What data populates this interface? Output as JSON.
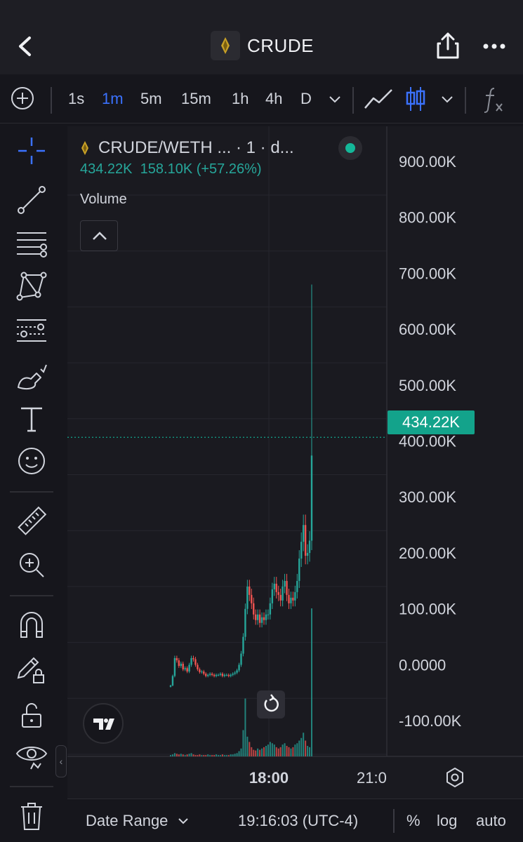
{
  "header": {
    "title": "CRUDE",
    "back_icon": "chevron-left-icon",
    "share_icon": "share-icon",
    "more_icon": "more-dots-icon"
  },
  "toolbar": {
    "add_icon": "plus-circle-icon",
    "intervals": [
      "1s",
      "1m",
      "5m",
      "15m",
      "1h",
      "4h",
      "D"
    ],
    "active_interval": "1m",
    "chart_type_icon": "line-chart-icon",
    "candle_icon": "candlestick-icon",
    "indicators_icon": "fx-icon"
  },
  "sidebar": {
    "tools": [
      "crosshair-icon",
      "trend-line-icon",
      "fib-retracement-icon",
      "pattern-icon",
      "prediction-icon",
      "brush-icon",
      "text-icon",
      "emoji-icon",
      "ruler-icon",
      "zoom-in-icon",
      "magnet-icon",
      "lock-drawing-icon",
      "unlock-icon",
      "eye-icon",
      "trash-icon"
    ]
  },
  "legend": {
    "pair": "CRUDE/WETH ... · 1 · d...",
    "price": "434.22K",
    "change": "158.10K (+57.26%)",
    "volume_label": "Volume"
  },
  "price_label": "434.22K",
  "colors": {
    "up": "#26a69a",
    "down": "#ef5350",
    "accent": "#3b72ff",
    "price_line": "#13a38b",
    "background": "#1a1a20"
  },
  "chart_data": {
    "type": "candlestick",
    "interval": "1m",
    "ylim": [
      -140000,
      950000
    ],
    "y_ticks": [
      "900.00K",
      "800.00K",
      "700.00K",
      "600.00K",
      "500.00K",
      "400.00K",
      "300.00K",
      "200.00K",
      "100.00K",
      "0.0000",
      "-100.00K"
    ],
    "y_tick_values": [
      900000,
      800000,
      700000,
      600000,
      500000,
      400000,
      300000,
      200000,
      100000,
      0,
      -100000
    ],
    "x_ticks": [
      "18:00",
      "21:0"
    ],
    "current_price": 434220,
    "change_abs": 158100,
    "change_pct": 57.26,
    "close_series": [
      23000,
      40000,
      72000,
      68000,
      58000,
      62000,
      52000,
      54000,
      48000,
      60000,
      72000,
      70000,
      60000,
      52000,
      47000,
      48000,
      44000,
      40000,
      42000,
      44000,
      42000,
      40000,
      42000,
      42000,
      44000,
      40000,
      42000,
      42000,
      40000,
      42000,
      44000,
      46000,
      50000,
      60000,
      80000,
      110000,
      160000,
      200000,
      185000,
      170000,
      150000,
      140000,
      150000,
      135000,
      145000,
      140000,
      150000,
      150000,
      170000,
      195000,
      205000,
      190000,
      185000,
      175000,
      200000,
      210000,
      185000,
      170000,
      180000,
      175000,
      190000,
      210000,
      250000,
      280000,
      310000,
      255000,
      260000,
      282000,
      434220
    ],
    "spike_high": 740000,
    "volume": [
      2,
      3,
      5,
      4,
      3,
      4,
      3,
      2,
      3,
      4,
      5,
      3,
      2,
      2,
      3,
      2,
      2,
      2,
      3,
      2,
      2,
      2,
      3,
      2,
      2,
      3,
      2,
      2,
      2,
      3,
      3,
      4,
      5,
      8,
      12,
      40,
      88,
      30,
      22,
      14,
      10,
      9,
      12,
      10,
      12,
      14,
      16,
      18,
      22,
      20,
      18,
      14,
      12,
      14,
      18,
      20,
      16,
      14,
      12,
      14,
      18,
      20,
      24,
      28,
      36,
      24,
      16,
      14,
      225
    ]
  },
  "bottom_bar": {
    "date_range": "Date Range",
    "time": "19:16:03 (UTC-4)",
    "percent": "%",
    "log": "log",
    "auto": "auto"
  }
}
